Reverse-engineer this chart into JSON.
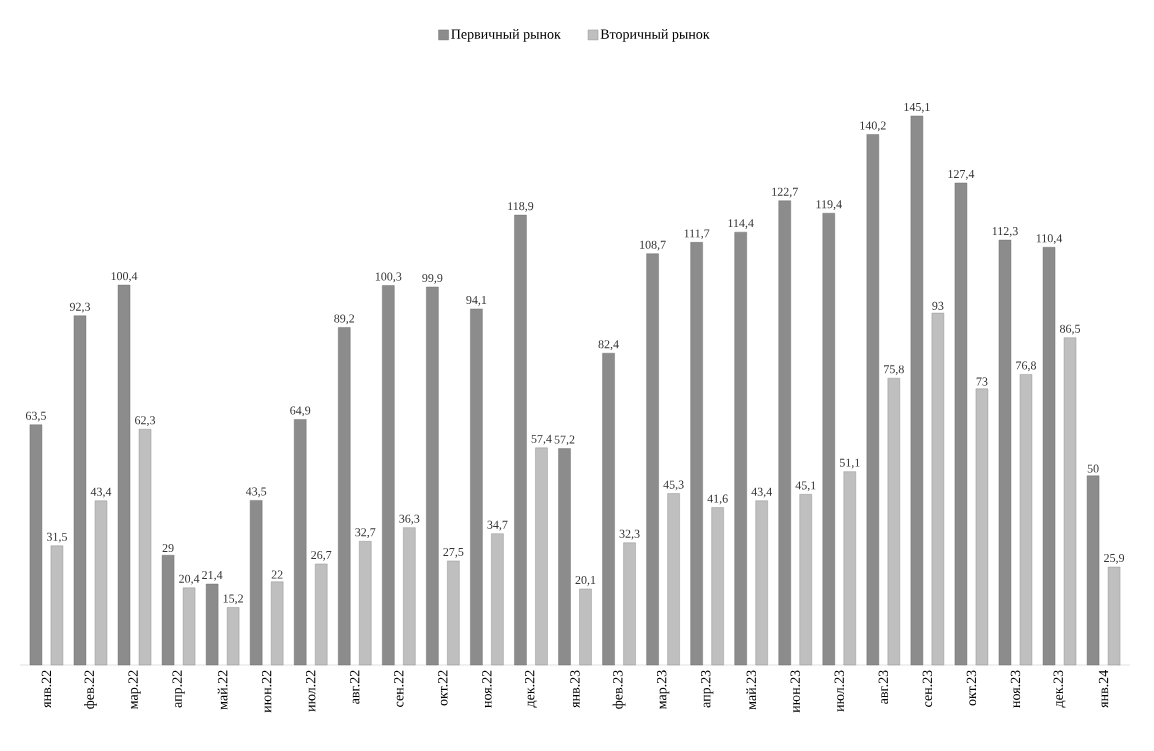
{
  "chart_data": {
    "type": "bar",
    "categories": [
      "янв.22",
      "фев.22",
      "мар.22",
      "апр.22",
      "май.22",
      "июн.22",
      "июл.22",
      "авг.22",
      "сен.22",
      "окт.22",
      "ноя.22",
      "дек.22",
      "янв.23",
      "фев.23",
      "мар.23",
      "апр.23",
      "май.23",
      "июн.23",
      "июл.23",
      "авг.23",
      "сен.23",
      "окт.23",
      "ноя.23",
      "дек.23",
      "янв.24"
    ],
    "series": [
      {
        "name": "Первичный рынок",
        "color": "#8c8c8c",
        "values": [
          63.5,
          92.3,
          100.4,
          29,
          21.4,
          43.5,
          64.9,
          89.2,
          100.3,
          99.9,
          94.1,
          118.9,
          57.2,
          82.4,
          108.7,
          111.7,
          114.4,
          122.7,
          119.4,
          140.2,
          145.1,
          127.4,
          112.3,
          110.4,
          50
        ],
        "value_labels": [
          "63,5",
          "92,3",
          "100,4",
          "29",
          "21,4",
          "43,5",
          "64,9",
          "89,2",
          "100,3",
          "99,9",
          "94,1",
          "118,9",
          "57,2",
          "82,4",
          "108,7",
          "111,7",
          "114,4",
          "122,7",
          "119,4",
          "140,2",
          "145,1",
          "127,4",
          "112,3",
          "110,4",
          "50"
        ]
      },
      {
        "name": "Вторичный рынок",
        "color": "#bfbfbf",
        "values": [
          31.5,
          43.4,
          62.3,
          20.4,
          15.2,
          22,
          26.7,
          32.7,
          36.3,
          27.5,
          34.7,
          57.4,
          20.1,
          32.3,
          45.3,
          41.6,
          43.4,
          45.1,
          51.1,
          75.8,
          93,
          73,
          76.8,
          86.5,
          25.9
        ],
        "value_labels": [
          "31,5",
          "43,4",
          "62,3",
          "20,4",
          "15,2",
          "22",
          "26,7",
          "32,7",
          "36,3",
          "27,5",
          "34,7",
          "57,4",
          "20,1",
          "32,3",
          "45,3",
          "41,6",
          "43,4",
          "45,1",
          "51,1",
          "75,8",
          "93",
          "73",
          "76,8",
          "86,5",
          "25,9"
        ]
      }
    ],
    "legend": "top",
    "tick_labels": "x",
    "grid": false
  }
}
